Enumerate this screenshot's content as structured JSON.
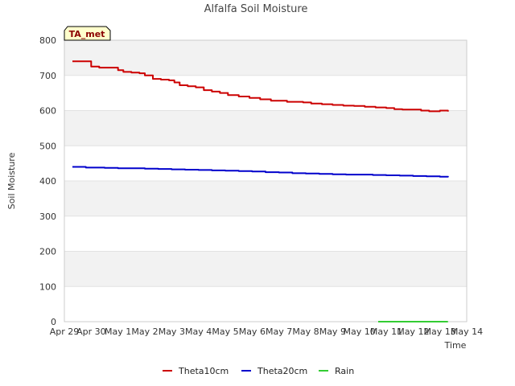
{
  "chart_data": {
    "type": "line",
    "title": "Alfalfa Soil Moisture",
    "xlabel": "Time",
    "ylabel": "Soil Moisture",
    "ylim": [
      0,
      800
    ],
    "yticks": [
      0,
      100,
      200,
      300,
      400,
      500,
      600,
      700,
      800
    ],
    "xlim": [
      0,
      15
    ],
    "xtick_values": [
      0,
      1,
      2,
      3,
      4,
      5,
      6,
      7,
      8,
      9,
      10,
      11,
      12,
      13,
      14,
      15
    ],
    "xtick_labels": [
      "Apr 29",
      "Apr 30",
      "May 1",
      "May 2",
      "May 3",
      "May 4",
      "May 5",
      "May 6",
      "May 7",
      "May 8",
      "May 9",
      "May 10",
      "May 11",
      "May 12",
      "May 13",
      "May 14"
    ],
    "badge": "TA_met",
    "series": [
      {
        "name": "Theta10cm",
        "color": "#cc0000",
        "x": [
          0.3,
          0.6,
          1.0,
          1.3,
          1.6,
          2.0,
          2.2,
          2.5,
          2.8,
          3.0,
          3.3,
          3.6,
          3.9,
          4.1,
          4.3,
          4.6,
          4.9,
          5.2,
          5.5,
          5.8,
          6.1,
          6.5,
          6.9,
          7.3,
          7.7,
          8.0,
          8.3,
          8.6,
          8.9,
          9.2,
          9.6,
          10.0,
          10.4,
          10.8,
          11.2,
          11.6,
          12.0,
          12.3,
          12.6,
          13.0,
          13.3,
          13.6,
          14.0,
          14.3
        ],
        "y": [
          740,
          740,
          725,
          722,
          722,
          715,
          710,
          708,
          706,
          700,
          690,
          688,
          686,
          680,
          672,
          669,
          666,
          658,
          654,
          650,
          644,
          640,
          636,
          632,
          628,
          628,
          625,
          625,
          623,
          620,
          618,
          616,
          614,
          613,
          611,
          609,
          607,
          604,
          603,
          603,
          600,
          598,
          600,
          597
        ]
      },
      {
        "name": "Theta20cm",
        "color": "#0000cc",
        "x": [
          0.3,
          0.8,
          1.5,
          2.0,
          2.5,
          3.0,
          3.5,
          4.0,
          4.5,
          5.0,
          5.5,
          6.0,
          6.5,
          7.0,
          7.5,
          8.0,
          8.5,
          9.0,
          9.5,
          10.0,
          10.5,
          11.0,
          11.5,
          12.0,
          12.5,
          13.0,
          13.5,
          14.0,
          14.3
        ],
        "y": [
          440,
          438,
          437,
          436,
          436,
          435,
          434,
          433,
          432,
          431,
          430,
          429,
          428,
          427,
          425,
          424,
          422,
          421,
          420,
          419,
          418,
          418,
          417,
          416,
          415,
          414,
          413,
          412,
          414
        ]
      },
      {
        "name": "Rain",
        "color": "#33cc33",
        "x": [
          11.7,
          14.3
        ],
        "y": [
          0,
          0
        ]
      }
    ]
  }
}
